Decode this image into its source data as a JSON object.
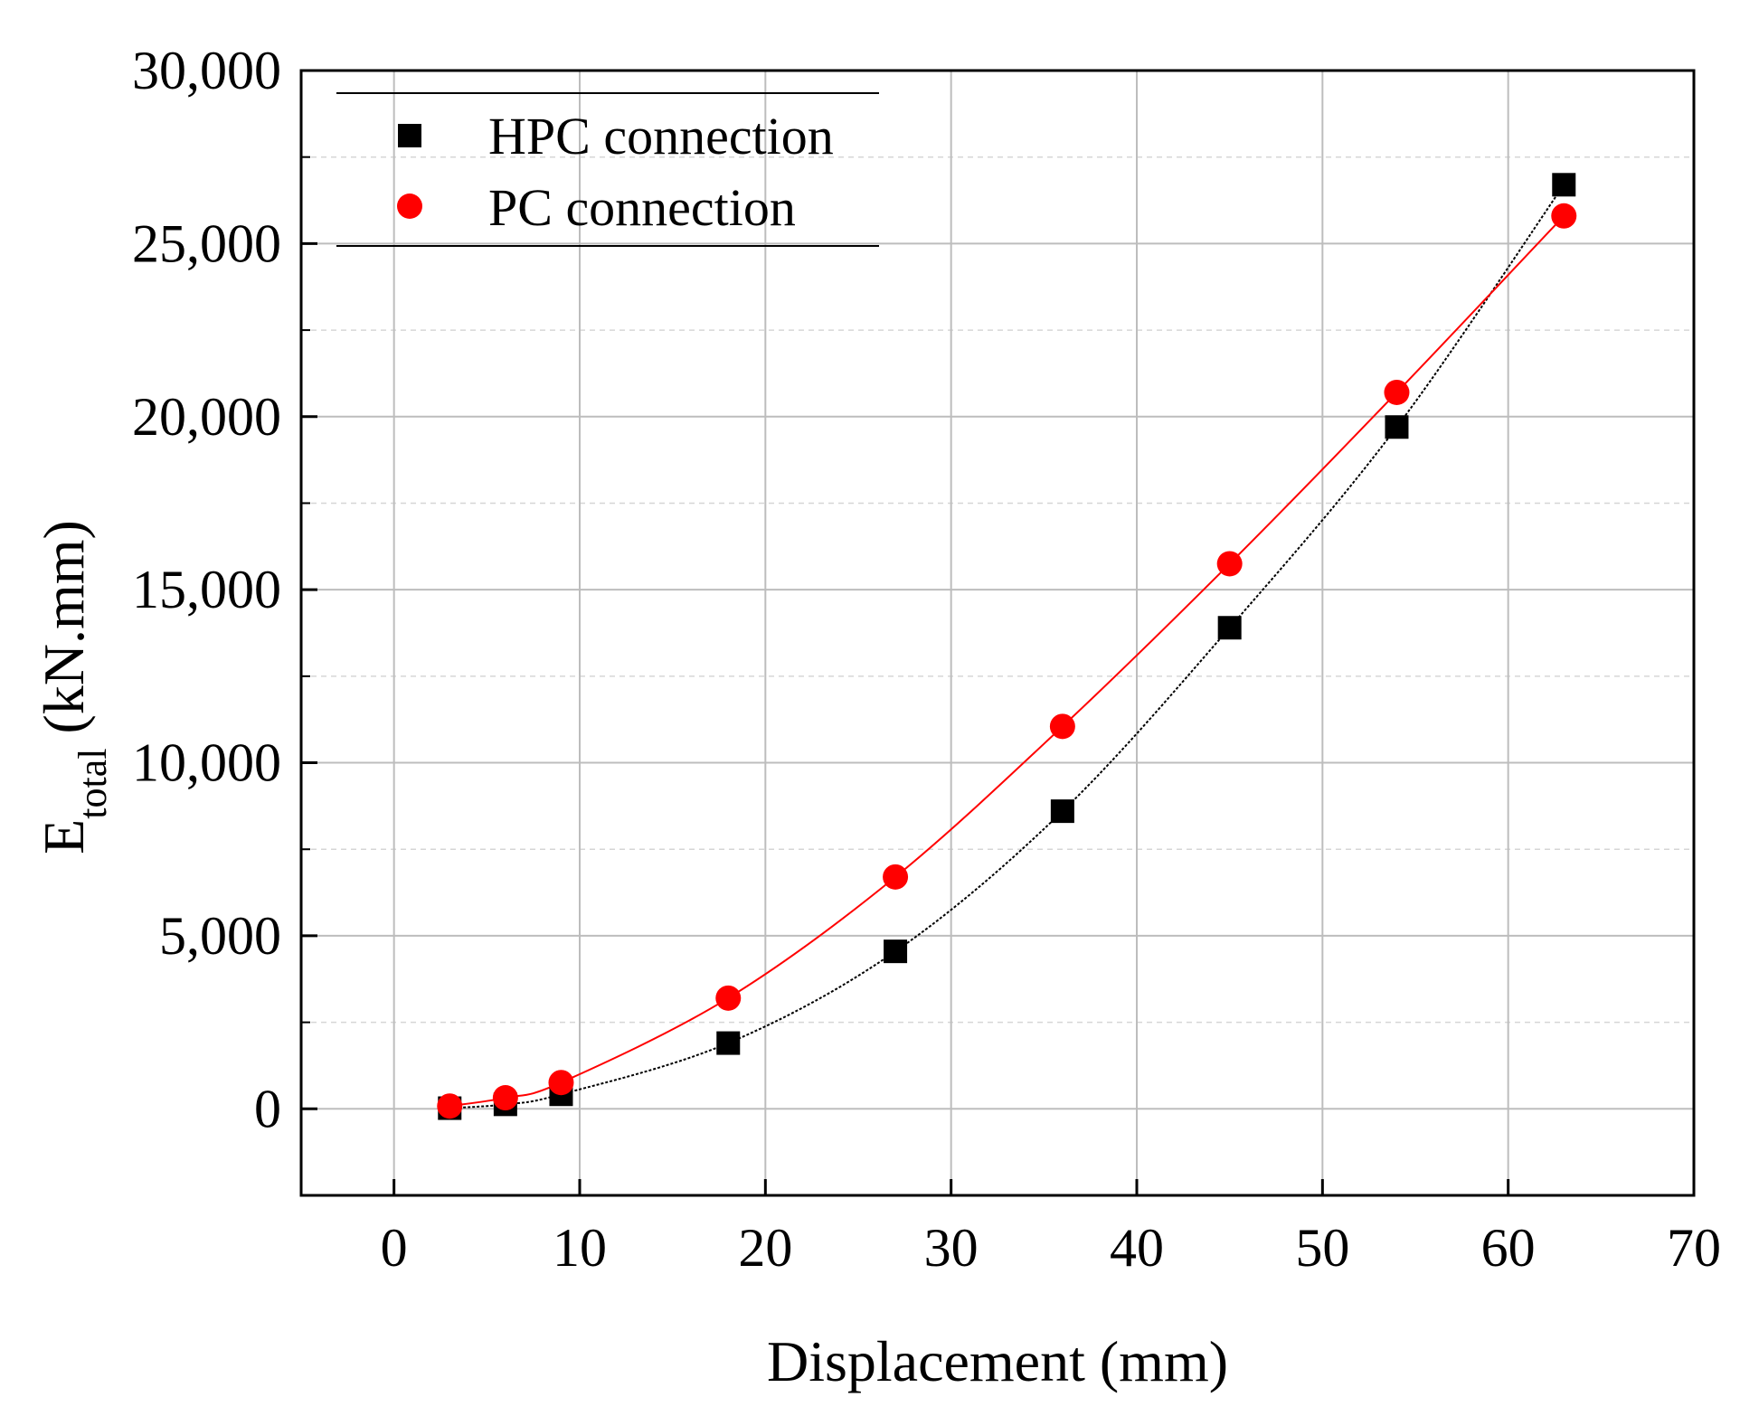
{
  "chart_data": {
    "type": "line",
    "title": "",
    "xlabel": "Displacement (mm)",
    "ylabel_main": "E",
    "ylabel_sub": "total",
    "ylabel_unit": " (kN.mm)",
    "xlim": [
      -5,
      70
    ],
    "ylim": [
      -2500,
      30000
    ],
    "xticks": [
      0,
      10,
      20,
      30,
      40,
      50,
      60,
      70
    ],
    "xtick_labels": [
      "0",
      "10",
      "20",
      "30",
      "40",
      "50",
      "60",
      "70"
    ],
    "yticks": [
      0,
      5000,
      10000,
      15000,
      20000,
      25000,
      30000
    ],
    "ytick_labels": [
      "0",
      "5,000",
      "10,000",
      "15,000",
      "20,000",
      "25,000",
      "30,000"
    ],
    "grid": true,
    "legend_position": "top-left",
    "series": [
      {
        "name": "HPC connection",
        "marker": "square",
        "color": "#000000",
        "x": [
          3,
          6,
          9,
          18,
          27,
          36,
          45,
          54,
          63
        ],
        "y": [
          20,
          130,
          420,
          1900,
          4550,
          8600,
          13900,
          19700,
          26700
        ]
      },
      {
        "name": "PC connection",
        "marker": "circle",
        "color": "#ff0000",
        "x": [
          3,
          6,
          9,
          18,
          27,
          36,
          45,
          54,
          63
        ],
        "y": [
          80,
          320,
          760,
          3200,
          6700,
          11050,
          15750,
          20700,
          25800
        ]
      }
    ]
  }
}
